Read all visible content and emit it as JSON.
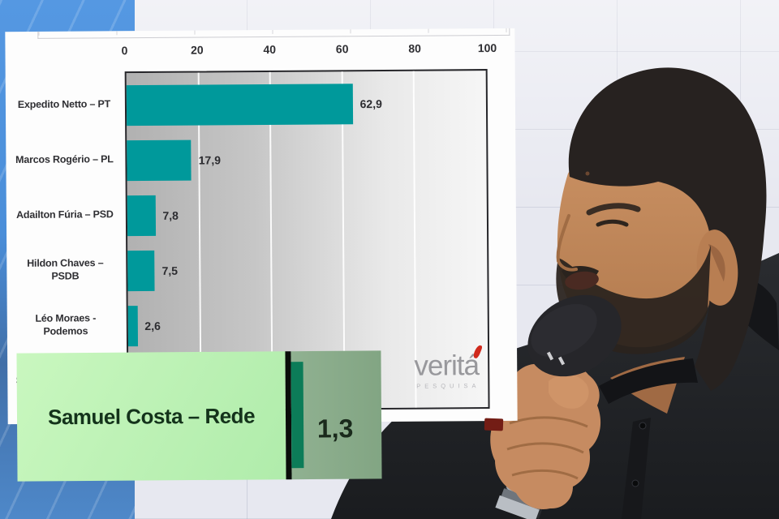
{
  "chart_data": {
    "type": "bar",
    "orientation": "horizontal",
    "title": "",
    "xlabel": "",
    "ylabel": "",
    "xlim": [
      0,
      100
    ],
    "x_ticks": [
      "0",
      "20",
      "40",
      "60",
      "80",
      "100"
    ],
    "categories": [
      "Expedito Netto – PT",
      "Marcos Rogério – PL",
      "Adailton Fúria – PSD",
      "Hildon Chaves –\nPSDB",
      "Léo Moraes -\nPodemos",
      "Samuel Costa – Rede"
    ],
    "values": [
      62.9,
      17.9,
      7.8,
      7.5,
      2.6,
      1.3
    ],
    "value_labels": [
      "62,9",
      "17,9",
      "7,8",
      "7,5",
      "2,6",
      "1,3"
    ],
    "bar_color": "#00999b",
    "grid": "vertical white gridlines at 20/40/60/80",
    "legend_position": "none",
    "plot_bg_gradient": [
      "#b1b1b1",
      "#f6f6f6"
    ]
  },
  "inset": {
    "label": "Samuel Costa – Rede",
    "value_label": "1,3",
    "bg_left": "#b9f1b0",
    "bg_right": "#8aac8b",
    "bar_color": "#0c7c58"
  },
  "logo": {
    "brand": "veritá",
    "tagline": "PESQUISA",
    "text_color": "#98989c",
    "accent_color": "#d0291c"
  },
  "colors": {
    "bar_teal": "#00999b",
    "blue_screen": "#4f96e0",
    "navy_stripe": "#1f2631",
    "wall": "#e7e8f0"
  }
}
